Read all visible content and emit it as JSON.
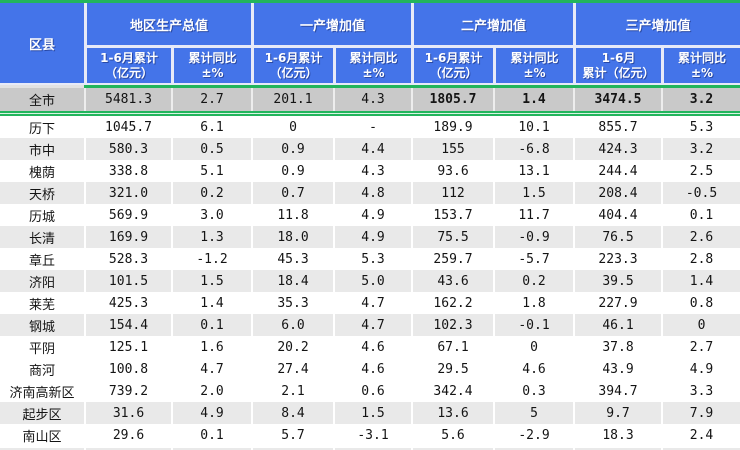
{
  "accent_colors": {
    "header_blue": "#4474e9",
    "accent_green": "#22b55c",
    "total_row_gray": "#c9c9c9",
    "shaded_row_gray": "#e9e9e9",
    "header_separator": "#e7eaf8"
  },
  "header": {
    "region": "区县",
    "groups": [
      {
        "label": "地区生产总值"
      },
      {
        "label": "一产增加值"
      },
      {
        "label": "二产增加值"
      },
      {
        "label": "三产增加值"
      }
    ],
    "subcols": [
      [
        "1-6月累计",
        "（亿元）"
      ],
      [
        "累计同比",
        "±%"
      ],
      [
        "1-6月累计",
        "（亿元）"
      ],
      [
        "累计同比",
        "±%"
      ],
      [
        "1-6月累计",
        "（亿元）"
      ],
      [
        "累计同比",
        "±%"
      ],
      [
        "1-6月",
        "累计（亿元）"
      ],
      [
        "累计同比",
        "±%"
      ]
    ]
  },
  "chart_data": {
    "type": "table",
    "column_groups": [
      "地区生产总值",
      "一产增加值",
      "二产增加值",
      "三产增加值"
    ],
    "columns": [
      "区县",
      "地区生产总值 1-6月累计（亿元）",
      "地区生产总值 累计同比±%",
      "一产增加值 1-6月累计（亿元）",
      "一产增加值 累计同比±%",
      "二产增加值 1-6月累计（亿元）",
      "二产增加值 累计同比±%",
      "三产增加值 1-6月累计（亿元）",
      "三产增加值 累计同比±%"
    ],
    "rows": [
      {
        "region": "全市",
        "values": [
          "5481.3",
          "2.7",
          "201.1",
          "4.3",
          "1805.7",
          "1.4",
          "3474.5",
          "3.2"
        ],
        "style": "total"
      },
      {
        "region": "历下",
        "values": [
          "1045.7",
          "6.1",
          "0",
          "-",
          "189.9",
          "10.1",
          "855.7",
          "5.3"
        ],
        "style": "plain"
      },
      {
        "region": "市中",
        "values": [
          "580.3",
          "0.5",
          "0.9",
          "4.4",
          "155",
          "-6.8",
          "424.3",
          "3.2"
        ],
        "style": "shaded"
      },
      {
        "region": "槐荫",
        "values": [
          "338.8",
          "5.1",
          "0.9",
          "4.3",
          "93.6",
          "13.1",
          "244.4",
          "2.5"
        ],
        "style": "plain"
      },
      {
        "region": "天桥",
        "values": [
          "321.0",
          "0.2",
          "0.7",
          "4.8",
          "112",
          "1.5",
          "208.4",
          "-0.5"
        ],
        "style": "shaded"
      },
      {
        "region": "历城",
        "values": [
          "569.9",
          "3.0",
          "11.8",
          "4.9",
          "153.7",
          "11.7",
          "404.4",
          "0.1"
        ],
        "style": "plain"
      },
      {
        "region": "长清",
        "values": [
          "169.9",
          "1.3",
          "18.0",
          "4.9",
          "75.5",
          "-0.9",
          "76.5",
          "2.6"
        ],
        "style": "shaded"
      },
      {
        "region": "章丘",
        "values": [
          "528.3",
          "-1.2",
          "45.3",
          "5.3",
          "259.7",
          "-5.7",
          "223.3",
          "2.8"
        ],
        "style": "plain"
      },
      {
        "region": "济阳",
        "values": [
          "101.5",
          "1.5",
          "18.4",
          "5.0",
          "43.6",
          "0.2",
          "39.5",
          "1.4"
        ],
        "style": "shaded"
      },
      {
        "region": "莱芜",
        "values": [
          "425.3",
          "1.4",
          "35.3",
          "4.7",
          "162.2",
          "1.8",
          "227.9",
          "0.8"
        ],
        "style": "plain"
      },
      {
        "region": "钢城",
        "values": [
          "154.4",
          "0.1",
          "6.0",
          "4.7",
          "102.3",
          "-0.1",
          "46.1",
          "0"
        ],
        "style": "shaded"
      },
      {
        "region": "平阴",
        "values": [
          "125.1",
          "1.6",
          "20.2",
          "4.6",
          "67.1",
          "0",
          "37.8",
          "2.7"
        ],
        "style": "plain"
      },
      {
        "region": "商河",
        "values": [
          "100.8",
          "4.7",
          "27.4",
          "4.6",
          "29.5",
          "4.6",
          "43.9",
          "4.9"
        ],
        "style": "plain"
      },
      {
        "region": "济南高新区",
        "values": [
          "739.2",
          "2.0",
          "2.1",
          "0.6",
          "342.4",
          "0.3",
          "394.7",
          "3.3"
        ],
        "style": "plain"
      },
      {
        "region": "起步区",
        "values": [
          "31.6",
          "4.9",
          "8.4",
          "1.5",
          "13.6",
          "5",
          "9.7",
          "7.9"
        ],
        "style": "shaded"
      },
      {
        "region": "南山区",
        "values": [
          "29.6",
          "0.1",
          "5.7",
          "-3.1",
          "5.6",
          "-2.9",
          "18.3",
          "2.4"
        ],
        "style": "plain"
      }
    ]
  }
}
